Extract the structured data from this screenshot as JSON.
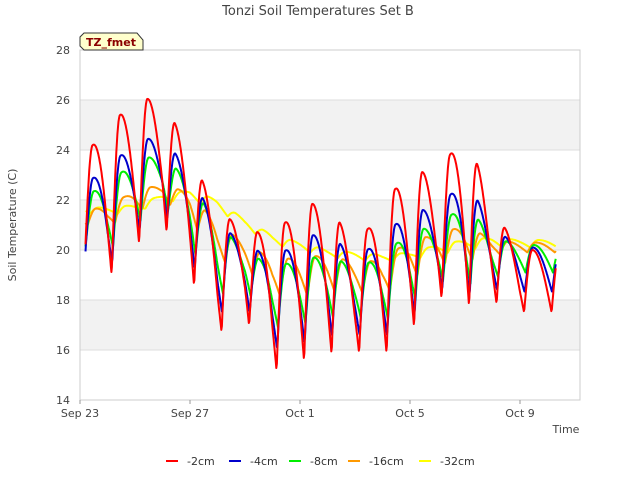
{
  "chart_data": {
    "type": "line",
    "title": "Tonzi Soil Temperatures Set B",
    "xlabel": "Time",
    "ylabel": "Soil Temperature (C)",
    "badge": "TZ_fmet",
    "ylim": [
      14,
      28
    ],
    "yticks": [
      14,
      16,
      18,
      20,
      22,
      24,
      26,
      28
    ],
    "xlim_days": [
      0,
      18
    ],
    "xticks": [
      {
        "label": "Sep 23",
        "day": 0
      },
      {
        "label": "Sep 27",
        "day": 4
      },
      {
        "label": "Oct 1",
        "day": 8
      },
      {
        "label": "Oct 5",
        "day": 12
      },
      {
        "label": "Oct 9",
        "day": 16
      }
    ],
    "grid": true,
    "legend_position": "bottom",
    "x_start_label": "Sep 23",
    "series": [
      {
        "name": "-2cm",
        "color": "#ff0000",
        "minima": [
          19.0,
          18.8,
          20.1,
          21.0,
          18.9,
          16.6,
          17.3,
          15.1,
          15.5,
          15.8,
          15.9,
          15.7,
          16.7,
          18.1,
          17.7,
          17.9,
          17.5
        ],
        "maxima": [
          23.6,
          24.9,
          26.0,
          26.1,
          23.8,
          21.5,
          20.9,
          20.5,
          21.8,
          21.9,
          20.1,
          21.7,
          23.3,
          22.9,
          24.9,
          21.6,
          20.0
        ]
      },
      {
        "name": "-4cm",
        "color": "#0000cc",
        "minima": [
          19.5,
          19.2,
          20.6,
          21.5,
          19.6,
          17.4,
          17.8,
          16.0,
          16.2,
          16.5,
          16.6,
          16.4,
          17.2,
          18.4,
          18.1,
          18.4,
          18.3
        ],
        "maxima": [
          22.5,
          23.3,
          24.3,
          24.6,
          23.0,
          21.0,
          20.3,
          19.6,
          20.4,
          20.8,
          19.6,
          20.5,
          21.6,
          21.6,
          22.9,
          20.9,
          20.1
        ]
      },
      {
        "name": "-8cm",
        "color": "#00ee00",
        "minima": [
          20.2,
          19.9,
          21.0,
          21.9,
          20.2,
          18.2,
          18.5,
          16.9,
          17.0,
          17.3,
          17.4,
          17.1,
          17.8,
          18.8,
          18.6,
          18.9,
          19.1
        ],
        "maxima": [
          22.1,
          22.6,
          23.6,
          23.8,
          22.7,
          21.0,
          20.0,
          19.3,
          19.6,
          19.8,
          19.3,
          19.7,
          20.8,
          20.9,
          21.9,
          20.5,
          20.2
        ]
      },
      {
        "name": "-16cm",
        "color": "#ff9900",
        "minima": [
          21.0,
          20.9,
          21.5,
          22.0,
          21.2,
          19.6,
          19.3,
          18.2,
          18.1,
          18.3,
          18.3,
          18.2,
          18.8,
          19.4,
          19.5,
          19.8,
          19.9
        ],
        "maxima": [
          21.6,
          21.7,
          22.4,
          22.6,
          22.3,
          21.0,
          20.3,
          19.6,
          19.7,
          19.8,
          19.5,
          19.6,
          20.4,
          20.6,
          21.0,
          20.4,
          20.3
        ]
      },
      {
        "name": "-32cm",
        "color": "#ffff00",
        "minima": [
          21.5,
          21.4,
          21.5,
          21.9,
          22.0,
          21.6,
          20.9,
          20.2,
          20.0,
          19.7,
          19.6,
          19.5,
          19.6,
          19.8,
          20.0,
          20.1,
          20.1
        ],
        "maxima": [
          21.7,
          21.7,
          21.8,
          22.2,
          22.4,
          22.0,
          21.2,
          20.6,
          20.3,
          20.0,
          19.9,
          19.8,
          19.9,
          20.2,
          20.4,
          20.5,
          20.4
        ]
      }
    ]
  }
}
